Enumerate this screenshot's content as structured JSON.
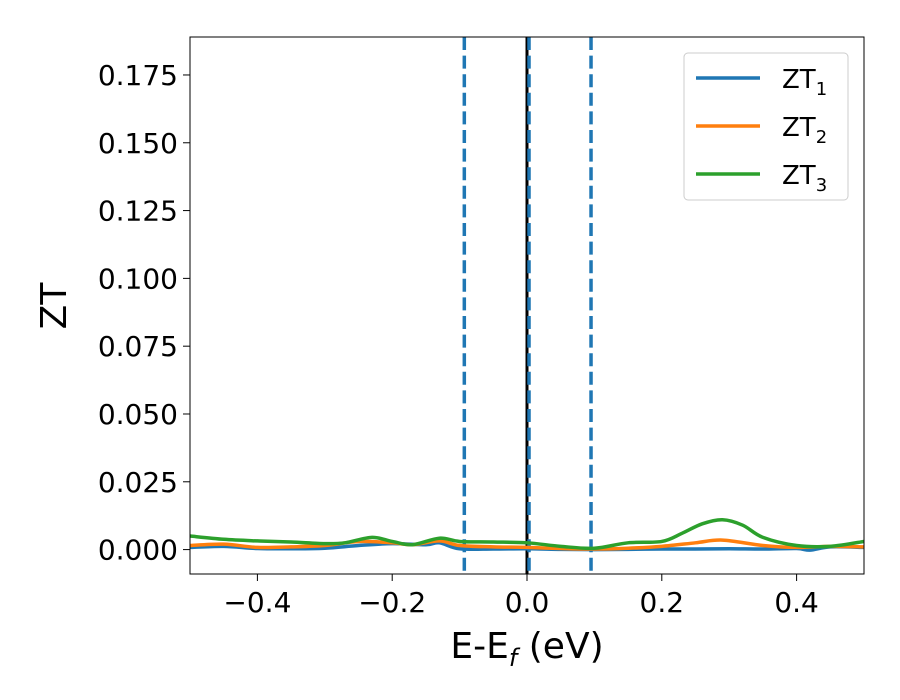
{
  "chart_data": {
    "type": "line",
    "xlabel_main": "E-E",
    "xlabel_sub": "f",
    "xlabel_unit": " (eV)",
    "ylabel": "ZT",
    "xlim": [
      -0.5,
      0.5
    ],
    "ylim": [
      -0.009,
      0.189
    ],
    "xticks": [
      -0.4,
      -0.2,
      0.0,
      0.2,
      0.4
    ],
    "xtick_labels": [
      "−0.4",
      "−0.2",
      "0.0",
      "0.2",
      "0.4"
    ],
    "yticks": [
      0.0,
      0.025,
      0.05,
      0.075,
      0.1,
      0.125,
      0.15,
      0.175
    ],
    "ytick_labels": [
      "0.000",
      "0.025",
      "0.050",
      "0.075",
      "0.100",
      "0.125",
      "0.150",
      "0.175"
    ],
    "legend_position": "top-right",
    "grid": false,
    "vlines": [
      {
        "x": -0.093,
        "style": "dashed",
        "color": "#1f77b4"
      },
      {
        "x": 0.0,
        "style": "solid",
        "color": "#000000"
      },
      {
        "x": 0.003,
        "style": "dashed",
        "color": "#1f77b4"
      },
      {
        "x": 0.095,
        "style": "dashed",
        "color": "#1f77b4"
      }
    ],
    "series": [
      {
        "name_main": "ZT",
        "name_sub": "1",
        "color": "#1f77b4",
        "x": [
          -0.5,
          -0.45,
          -0.4,
          -0.35,
          -0.3,
          -0.25,
          -0.2,
          -0.15,
          -0.13,
          -0.1,
          -0.05,
          0.0,
          0.05,
          0.1,
          0.15,
          0.2,
          0.25,
          0.3,
          0.35,
          0.4,
          0.42,
          0.45,
          0.5
        ],
        "y": [
          0.0008,
          0.0012,
          0.0004,
          0.0003,
          0.0005,
          0.0015,
          0.0022,
          0.0018,
          0.0025,
          0.0003,
          0.0002,
          0.0003,
          0.0001,
          0.0,
          0.0001,
          0.0002,
          0.0002,
          0.0003,
          0.0002,
          0.0004,
          -0.0002,
          0.001,
          0.0008
        ]
      },
      {
        "name_main": "ZT",
        "name_sub": "2",
        "color": "#ff7f0e",
        "x": [
          -0.5,
          -0.45,
          -0.4,
          -0.35,
          -0.3,
          -0.25,
          -0.2,
          -0.17,
          -0.13,
          -0.1,
          -0.05,
          0.0,
          0.05,
          0.1,
          0.15,
          0.2,
          0.25,
          0.29,
          0.35,
          0.4,
          0.45,
          0.5
        ],
        "y": [
          0.0015,
          0.002,
          0.0008,
          0.001,
          0.0015,
          0.003,
          0.0025,
          0.0018,
          0.0032,
          0.0015,
          0.001,
          0.0008,
          0.0004,
          0.0002,
          0.0005,
          0.0012,
          0.0025,
          0.0035,
          0.0015,
          0.0008,
          0.0012,
          0.001
        ]
      },
      {
        "name_main": "ZT",
        "name_sub": "3",
        "color": "#2ca02c",
        "x": [
          -0.5,
          -0.45,
          -0.4,
          -0.35,
          -0.3,
          -0.27,
          -0.23,
          -0.2,
          -0.17,
          -0.13,
          -0.1,
          -0.05,
          0.0,
          0.05,
          0.1,
          0.15,
          0.2,
          0.23,
          0.26,
          0.29,
          0.32,
          0.35,
          0.4,
          0.45,
          0.5
        ],
        "y": [
          0.005,
          0.0038,
          0.0032,
          0.0028,
          0.0022,
          0.0025,
          0.0045,
          0.003,
          0.0018,
          0.0042,
          0.003,
          0.0028,
          0.0025,
          0.0012,
          0.0005,
          0.0025,
          0.003,
          0.006,
          0.0095,
          0.011,
          0.009,
          0.0045,
          0.0015,
          0.0012,
          0.003
        ]
      }
    ]
  }
}
